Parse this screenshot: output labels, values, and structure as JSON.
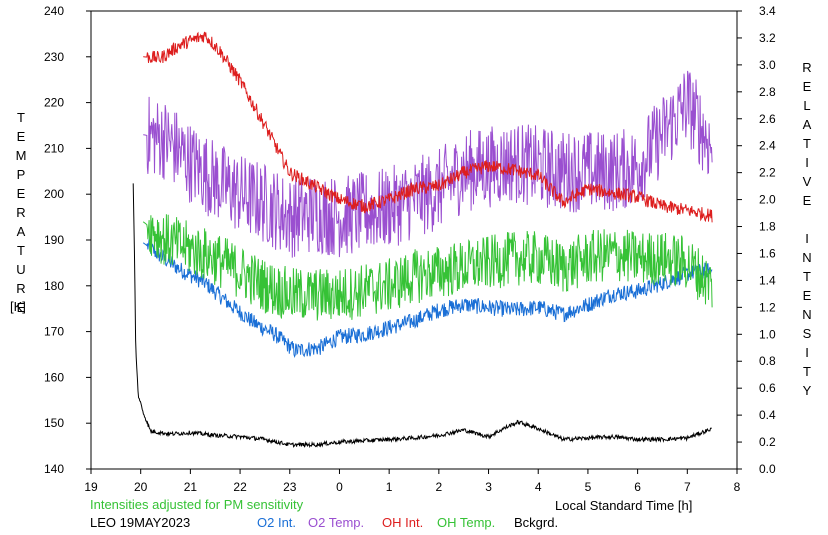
{
  "chart_data": {
    "type": "line",
    "x_axis": {
      "label": "Local Standard Time [h]",
      "ticks": [
        19,
        20,
        21,
        22,
        23,
        0,
        1,
        2,
        3,
        4,
        5,
        6,
        7,
        8
      ],
      "tick_labels": [
        "19",
        "20",
        "21",
        "22",
        "23",
        "0",
        "1",
        "2",
        "3",
        "4",
        "5",
        "6",
        "7",
        "8"
      ],
      "range_hours": [
        19,
        32
      ]
    },
    "y_left": {
      "label_letters": [
        "T",
        "E",
        "M",
        "P",
        "E",
        "R",
        "A",
        "T",
        "U",
        "R",
        "E"
      ],
      "unit": "[K]",
      "range": [
        140,
        240
      ],
      "ticks": [
        140,
        150,
        160,
        170,
        180,
        190,
        200,
        210,
        220,
        230,
        240
      ]
    },
    "y_right": {
      "label_letters": [
        "R",
        "E",
        "L",
        "A",
        "T",
        "I",
        "V",
        "E",
        "",
        "I",
        "N",
        "T",
        "E",
        "N",
        "S",
        "I",
        "T",
        "Y"
      ],
      "range": [
        0.0,
        3.4
      ],
      "ticks": [
        "0.0",
        "0.2",
        "0.4",
        "0.6",
        "0.8",
        "1.0",
        "1.2",
        "1.4",
        "1.6",
        "1.8",
        "2.0",
        "2.2",
        "2.4",
        "2.6",
        "2.8",
        "3.0",
        "3.2",
        "3.4"
      ]
    },
    "grid": false,
    "footer": {
      "note": "Intensities adjusted for PM sensitivity",
      "station": "LEO 19MAY2023"
    },
    "legend_placement": "bottom",
    "series": [
      {
        "name": "O2 Int.",
        "axis": "right",
        "color": "#1a6fd6",
        "noise": 0.06,
        "points": [
          [
            20.05,
            1.68
          ],
          [
            20.4,
            1.58
          ],
          [
            20.8,
            1.48
          ],
          [
            21.3,
            1.38
          ],
          [
            21.8,
            1.22
          ],
          [
            22.3,
            1.08
          ],
          [
            22.7,
            1.0
          ],
          [
            23.1,
            0.88
          ],
          [
            23.6,
            0.9
          ],
          [
            24.0,
            0.98
          ],
          [
            24.5,
            1.0
          ],
          [
            25.0,
            1.05
          ],
          [
            25.5,
            1.1
          ],
          [
            26.0,
            1.18
          ],
          [
            26.5,
            1.22
          ],
          [
            27.0,
            1.2
          ],
          [
            27.5,
            1.18
          ],
          [
            28.0,
            1.2
          ],
          [
            28.5,
            1.15
          ],
          [
            29.0,
            1.22
          ],
          [
            29.5,
            1.3
          ],
          [
            30.0,
            1.32
          ],
          [
            30.5,
            1.38
          ],
          [
            31.0,
            1.45
          ],
          [
            31.5,
            1.48
          ]
        ]
      },
      {
        "name": "O2 Temp.",
        "axis": "left",
        "color": "#9a4fd0",
        "noise": 9,
        "points": [
          [
            20.05,
            213
          ],
          [
            20.5,
            212
          ],
          [
            21.0,
            207
          ],
          [
            21.5,
            203
          ],
          [
            22.0,
            200
          ],
          [
            22.5,
            198
          ],
          [
            23.0,
            195
          ],
          [
            23.5,
            196
          ],
          [
            24.0,
            195
          ],
          [
            24.5,
            196
          ],
          [
            25.0,
            197
          ],
          [
            25.5,
            199
          ],
          [
            26.0,
            201
          ],
          [
            26.5,
            205
          ],
          [
            27.0,
            206
          ],
          [
            27.5,
            207
          ],
          [
            28.0,
            206
          ],
          [
            28.5,
            205
          ],
          [
            29.0,
            205
          ],
          [
            29.5,
            205
          ],
          [
            30.0,
            206
          ],
          [
            30.5,
            213
          ],
          [
            31.0,
            220
          ],
          [
            31.5,
            210
          ]
        ]
      },
      {
        "name": "OH Int.",
        "axis": "right",
        "color": "#dd1e1e",
        "noise": 0.05,
        "points": [
          [
            20.05,
            3.06
          ],
          [
            20.4,
            3.05
          ],
          [
            20.8,
            3.15
          ],
          [
            21.3,
            3.22
          ],
          [
            21.6,
            3.1
          ],
          [
            22.0,
            2.88
          ],
          [
            22.5,
            2.55
          ],
          [
            23.0,
            2.2
          ],
          [
            23.5,
            2.1
          ],
          [
            24.0,
            2.0
          ],
          [
            24.5,
            1.95
          ],
          [
            25.0,
            2.0
          ],
          [
            25.5,
            2.08
          ],
          [
            26.0,
            2.1
          ],
          [
            26.5,
            2.2
          ],
          [
            27.0,
            2.25
          ],
          [
            27.5,
            2.22
          ],
          [
            28.0,
            2.18
          ],
          [
            28.5,
            1.98
          ],
          [
            29.0,
            2.08
          ],
          [
            29.5,
            2.05
          ],
          [
            30.0,
            2.02
          ],
          [
            30.5,
            1.95
          ],
          [
            31.0,
            1.92
          ],
          [
            31.5,
            1.88
          ]
        ]
      },
      {
        "name": "OH Temp.",
        "axis": "left",
        "color": "#36c236",
        "noise": 6,
        "points": [
          [
            20.05,
            194
          ],
          [
            20.5,
            190
          ],
          [
            21.0,
            188
          ],
          [
            21.5,
            186
          ],
          [
            22.0,
            183
          ],
          [
            22.5,
            180
          ],
          [
            23.0,
            178
          ],
          [
            23.5,
            178
          ],
          [
            24.0,
            178
          ],
          [
            24.5,
            179
          ],
          [
            25.0,
            180
          ],
          [
            25.5,
            182
          ],
          [
            26.0,
            183
          ],
          [
            26.5,
            184
          ],
          [
            27.0,
            185
          ],
          [
            27.5,
            186
          ],
          [
            28.0,
            186
          ],
          [
            28.5,
            184
          ],
          [
            29.0,
            186
          ],
          [
            29.5,
            187
          ],
          [
            30.0,
            186
          ],
          [
            30.5,
            186
          ],
          [
            31.0,
            185
          ],
          [
            31.5,
            180
          ]
        ]
      },
      {
        "name": "Bckgrd.",
        "axis": "right",
        "color": "#000000",
        "noise": 0.015,
        "points": [
          [
            19.85,
            2.12
          ],
          [
            19.88,
            1.5
          ],
          [
            19.9,
            0.9
          ],
          [
            19.95,
            0.55
          ],
          [
            20.05,
            0.42
          ],
          [
            20.2,
            0.28
          ],
          [
            20.6,
            0.26
          ],
          [
            21.0,
            0.27
          ],
          [
            21.5,
            0.25
          ],
          [
            22.0,
            0.24
          ],
          [
            22.5,
            0.22
          ],
          [
            23.0,
            0.18
          ],
          [
            23.5,
            0.18
          ],
          [
            24.0,
            0.2
          ],
          [
            24.5,
            0.21
          ],
          [
            25.0,
            0.22
          ],
          [
            25.5,
            0.23
          ],
          [
            26.0,
            0.25
          ],
          [
            26.5,
            0.29
          ],
          [
            27.0,
            0.24
          ],
          [
            27.3,
            0.3
          ],
          [
            27.6,
            0.35
          ],
          [
            28.0,
            0.3
          ],
          [
            28.5,
            0.22
          ],
          [
            29.0,
            0.23
          ],
          [
            29.5,
            0.24
          ],
          [
            30.0,
            0.22
          ],
          [
            30.5,
            0.22
          ],
          [
            31.0,
            0.23
          ],
          [
            31.5,
            0.3
          ]
        ]
      }
    ]
  }
}
